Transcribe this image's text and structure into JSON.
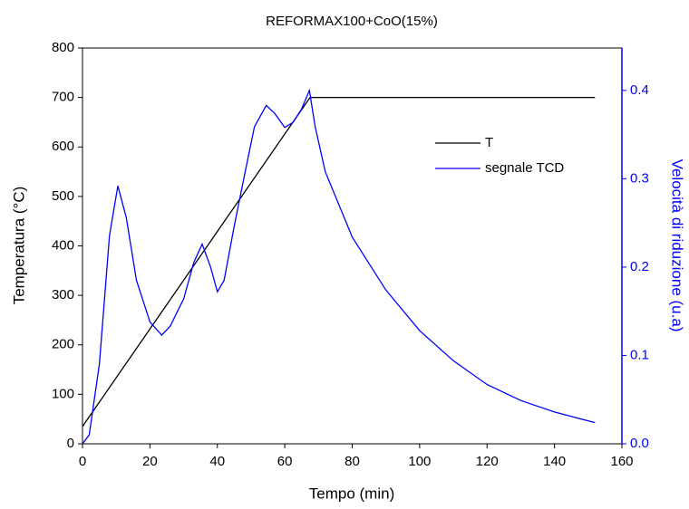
{
  "chart_data": {
    "type": "line",
    "title": "REFORMAX100+CoO(15%)",
    "x_label": "Tempo (min)",
    "y_label": "Temperatura (°C)",
    "y2_label": "Velocità di riduzione (u.a)",
    "y2_color": "#0000ff",
    "xlim": [
      0,
      160
    ],
    "xticks": [
      0,
      20,
      40,
      60,
      80,
      100,
      120,
      140,
      160
    ],
    "ylim": [
      0,
      800
    ],
    "yticks": [
      0,
      100,
      200,
      300,
      400,
      500,
      600,
      700,
      800
    ],
    "y2lim": [
      0,
      0.448
    ],
    "y2ticks": [
      {
        "value": 0,
        "label": "0.0"
      },
      {
        "value": 0.1,
        "label": "0.1"
      },
      {
        "value": 0.2,
        "label": "0.2"
      },
      {
        "value": 0.3,
        "label": "0.3"
      },
      {
        "value": 0.4,
        "label": "0.4"
      }
    ],
    "legend_position": "upper right",
    "series": [
      {
        "name": "T",
        "color": "#000000",
        "x": [
          0,
          67.5,
          152
        ],
        "values": [
          35,
          700,
          700
        ]
      },
      {
        "name": "segnale TCD",
        "color": "#0000ff",
        "axis": "y2",
        "x": [
          0,
          2,
          5,
          8,
          10.5,
          13,
          16,
          20,
          23.5,
          26,
          30,
          33,
          35.5,
          38,
          40,
          42,
          45,
          48,
          51,
          54.5,
          57,
          60,
          62.5,
          65,
          67.3,
          69,
          72,
          80,
          90,
          100,
          110,
          120,
          130,
          140,
          152
        ],
        "values": [
          0,
          0.01,
          0.09,
          0.236,
          0.292,
          0.256,
          0.185,
          0.138,
          0.123,
          0.133,
          0.164,
          0.205,
          0.226,
          0.2,
          0.172,
          0.185,
          0.246,
          0.303,
          0.359,
          0.383,
          0.374,
          0.358,
          0.364,
          0.379,
          0.4,
          0.359,
          0.308,
          0.234,
          0.174,
          0.128,
          0.094,
          0.067,
          0.049,
          0.036,
          0.024
        ]
      }
    ]
  }
}
